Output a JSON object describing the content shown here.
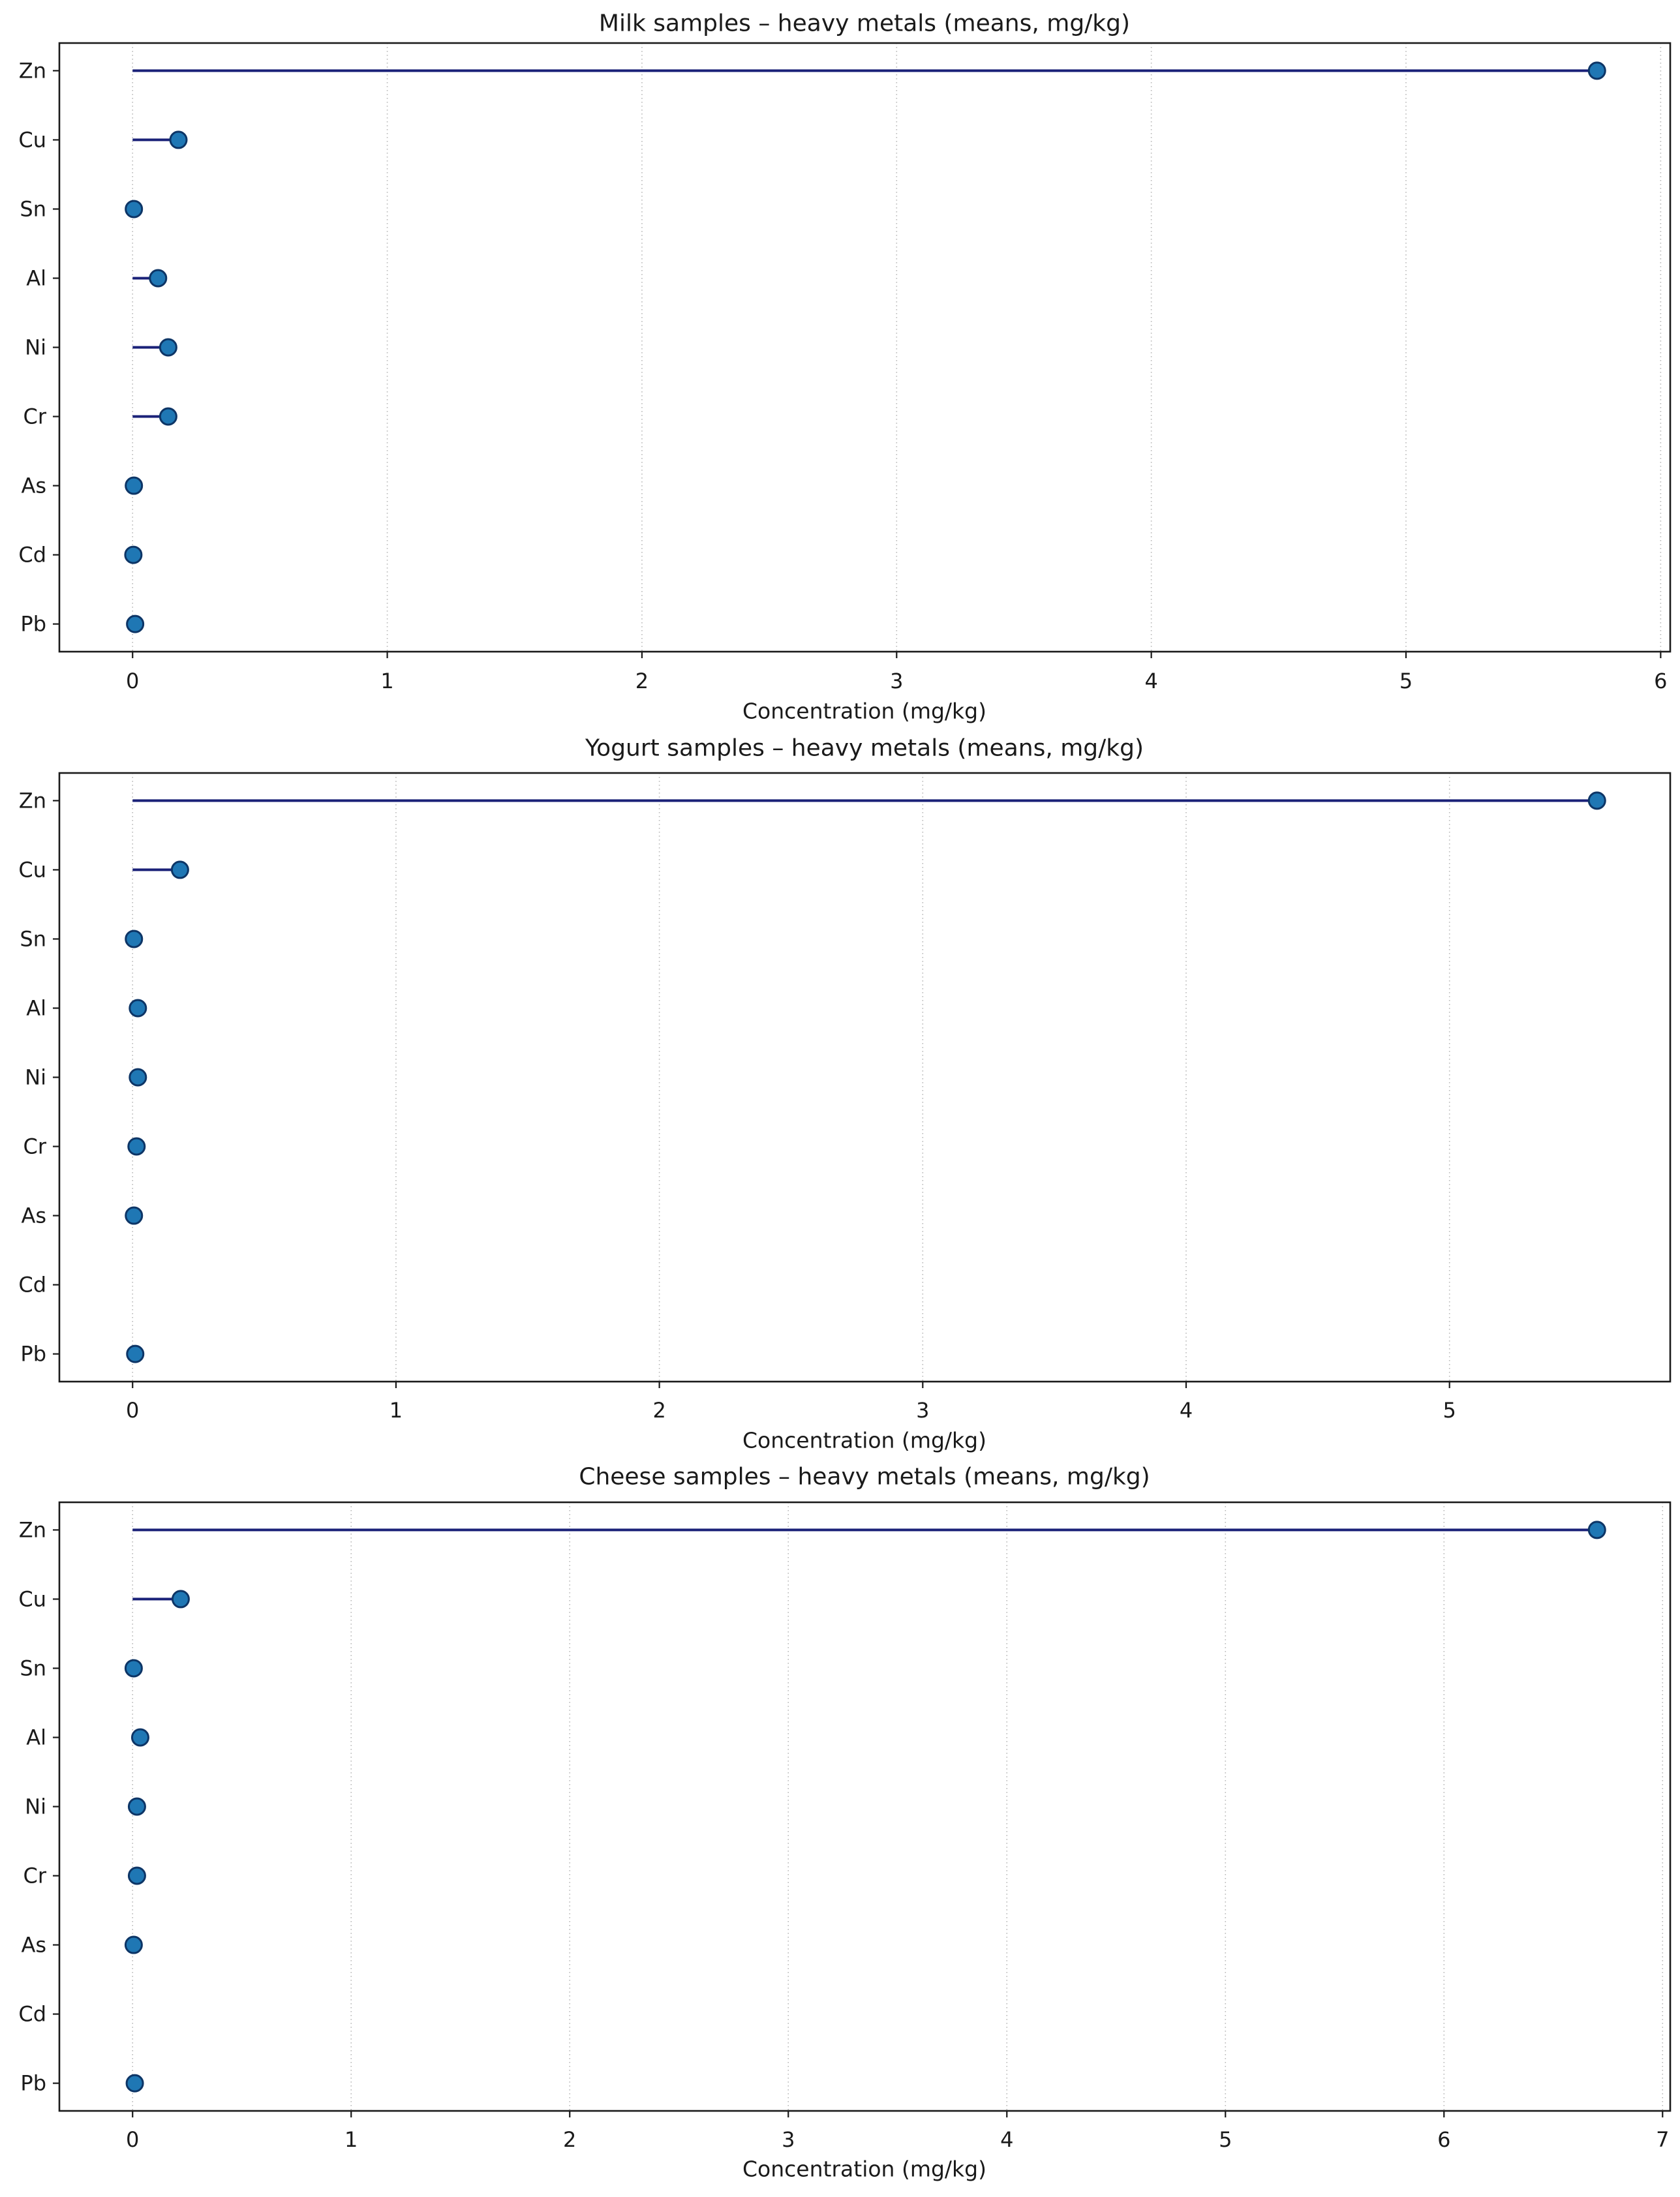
{
  "figure": {
    "xlabel": "Concentration (mg/kg)",
    "categories": [
      "Zn",
      "Cu",
      "Sn",
      "Al",
      "Ni",
      "Cr",
      "As",
      "Cd",
      "Pb"
    ]
  },
  "style": {
    "dot_fill": "#1f77b4",
    "dot_edge": "#0d3566",
    "stem_color": "#1a2178",
    "grid_color": "#b5b5b5",
    "spine_color": "#1a1a1a",
    "text_color": "#1a1a1a",
    "background": "#ffffff"
  },
  "chart_data": [
    {
      "type": "scatter",
      "subtype": "lollipop-horizontal",
      "title": "Milk samples – heavy metals (means, mg/kg)",
      "xlabel": "Concentration (mg/kg)",
      "ylabel": "",
      "categories": [
        "Zn",
        "Cu",
        "Sn",
        "Al",
        "Ni",
        "Cr",
        "As",
        "Cd",
        "Pb"
      ],
      "values": [
        5.75,
        0.18,
        0.005,
        0.1,
        0.14,
        0.14,
        0.005,
        0.003,
        0.01
      ],
      "xticks": [
        0,
        1,
        2,
        3,
        4,
        5,
        6
      ],
      "xlim": [
        -0.2875,
        6.0375
      ],
      "grid": "vertical-dotted",
      "legend": "none"
    },
    {
      "type": "scatter",
      "subtype": "lollipop-horizontal",
      "title": "Yogurt samples – heavy metals (means, mg/kg)",
      "xlabel": "Concentration (mg/kg)",
      "ylabel": "",
      "categories": [
        "Zn",
        "Cu",
        "Sn",
        "Al",
        "Ni",
        "Cr",
        "As",
        "Cd",
        "Pb"
      ],
      "values": [
        5.56,
        0.18,
        0.005,
        0.02,
        0.02,
        0.015,
        0.005,
        null,
        0.01
      ],
      "xticks": [
        0,
        1,
        2,
        3,
        4,
        5
      ],
      "xlim": [
        -0.278,
        5.838
      ],
      "grid": "vertical-dotted",
      "legend": "none",
      "note": "Cd has no data point"
    },
    {
      "type": "scatter",
      "subtype": "lollipop-horizontal",
      "title": "Cheese samples – heavy metals (means, mg/kg)",
      "xlabel": "Concentration (mg/kg)",
      "ylabel": "",
      "categories": [
        "Zn",
        "Cu",
        "Sn",
        "Al",
        "Ni",
        "Cr",
        "As",
        "Cd",
        "Pb"
      ],
      "values": [
        6.7,
        0.22,
        0.005,
        0.035,
        0.02,
        0.02,
        0.005,
        null,
        0.01
      ],
      "xticks": [
        0,
        1,
        2,
        3,
        4,
        5,
        6,
        7
      ],
      "xlim": [
        -0.335,
        7.035
      ],
      "grid": "vertical-dotted",
      "legend": "none",
      "note": "Cd has no data point"
    }
  ]
}
